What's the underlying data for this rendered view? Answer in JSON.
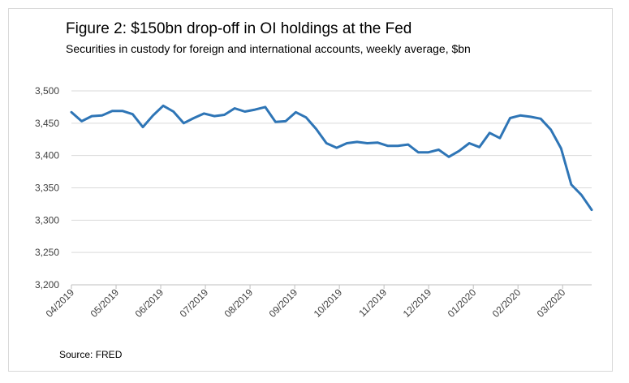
{
  "figure": {
    "title": "Figure 2: $150bn drop-off in OI holdings at the Fed",
    "subtitle": "Securities in custody for foreign and international accounts, weekly average, $bn",
    "source": "Source: FRED"
  },
  "chart_data": {
    "type": "line",
    "title": "Figure 2: $150bn drop-off in OI holdings at the Fed",
    "subtitle": "Securities in custody for foreign and international accounts, weekly average, $bn",
    "xlabel": "",
    "ylabel": "",
    "ylim": [
      3200,
      3500
    ],
    "yticks": [
      3200,
      3250,
      3300,
      3350,
      3400,
      3450,
      3500
    ],
    "ytick_labels": [
      "3,200",
      "3,250",
      "3,300",
      "3,350",
      "3,400",
      "3,450",
      "3,500"
    ],
    "xtick_labels": [
      "04/2019",
      "05/2019",
      "06/2019",
      "07/2019",
      "08/2019",
      "09/2019",
      "10/2019",
      "11/2019",
      "12/2019",
      "01/2020",
      "02/2020",
      "03/2020"
    ],
    "grid": true,
    "legend": "none",
    "line_color": "#2e75b6",
    "series": [
      {
        "values": [
          3467,
          3453,
          3461,
          3462,
          3469,
          3469,
          3464,
          3444,
          3462,
          3477,
          3468,
          3450,
          3458,
          3465,
          3461,
          3463,
          3473,
          3468,
          3471,
          3475,
          3452,
          3453,
          3467,
          3459,
          3441,
          3419,
          3412,
          3419,
          3421,
          3419,
          3420,
          3415,
          3415,
          3417,
          3405,
          3405,
          3409,
          3398,
          3407,
          3419,
          3413,
          3435,
          3427,
          3458,
          3462,
          3460,
          3457,
          3440,
          3411,
          3355,
          3339,
          3316
        ]
      }
    ]
  }
}
